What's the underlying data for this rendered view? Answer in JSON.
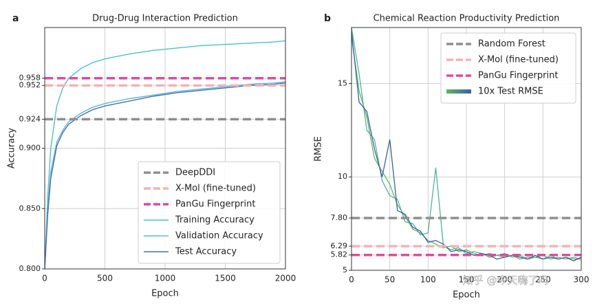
{
  "chart_data": [
    {
      "type": "line",
      "panel_label": "a",
      "title": "Drug-Drug Interaction Prediction",
      "xlabel": "Epoch",
      "ylabel": "Accuracy",
      "xlim": [
        0,
        2000
      ],
      "xticks": [
        0,
        500,
        1000,
        1500,
        2000
      ],
      "ylim": [
        0.8,
        1.0
      ],
      "yticks": [
        {
          "value": 0.8,
          "label": "0.800"
        },
        {
          "value": 0.85,
          "label": "0.850"
        },
        {
          "value": 0.9,
          "label": "0.900"
        },
        0.924,
        0.952,
        0.958
      ],
      "grid": true,
      "legend": "lower right",
      "hlines": [
        {
          "name": "DeepDDI",
          "color": "#8e8e8e",
          "value": 0.924
        },
        {
          "name": "X-Mol (fine-tuned)",
          "color": "#f0b4b4",
          "value": 0.952
        },
        {
          "name": "PanGu Fingerprint",
          "color": "#df4a9a",
          "value": 0.958
        }
      ],
      "x": [
        0,
        25,
        50,
        100,
        150,
        200,
        300,
        400,
        500,
        700,
        900,
        1100,
        1300,
        1500,
        1700,
        1900,
        2000
      ],
      "series": [
        {
          "name": "Training Accuracy",
          "color": "#4fc0c0",
          "values": [
            0.8,
            0.86,
            0.9,
            0.935,
            0.95,
            0.958,
            0.966,
            0.971,
            0.974,
            0.978,
            0.981,
            0.983,
            0.985,
            0.986,
            0.987,
            0.988,
            0.989
          ]
        },
        {
          "name": "Validation Accuracy",
          "color": "#5ab8dc",
          "values": [
            0.8,
            0.85,
            0.88,
            0.905,
            0.915,
            0.922,
            0.929,
            0.934,
            0.937,
            0.941,
            0.944,
            0.947,
            0.949,
            0.951,
            0.953,
            0.954,
            0.955
          ]
        },
        {
          "name": "Test Accuracy",
          "color": "#4a6fa8",
          "values": [
            0.8,
            0.845,
            0.875,
            0.902,
            0.913,
            0.92,
            0.927,
            0.932,
            0.935,
            0.939,
            0.943,
            0.946,
            0.948,
            0.95,
            0.952,
            0.953,
            0.954
          ]
        }
      ]
    },
    {
      "type": "line",
      "panel_label": "b",
      "title": "Chemical Reaction Productivity Prediction",
      "xlabel": "Epoch",
      "ylabel": "RMSE",
      "xlim": [
        0,
        300
      ],
      "xticks": [
        0,
        50,
        100,
        150,
        200,
        250,
        300
      ],
      "ylim": [
        5,
        18
      ],
      "yticks": [
        5,
        5.82,
        6.29,
        {
          "value": 7.8,
          "label": "7.80"
        },
        10,
        15
      ],
      "grid": true,
      "legend": "upper right",
      "hlines": [
        {
          "name": "Random Forest",
          "color": "#8e8e8e",
          "value": 7.8
        },
        {
          "name": "X-Mol (fine-tuned)",
          "color": "#f0b4b4",
          "value": 6.29
        },
        {
          "name": "PanGu Fingerprint",
          "color": "#df4a9a",
          "value": 5.82
        }
      ],
      "x": [
        0,
        10,
        20,
        30,
        40,
        50,
        60,
        70,
        80,
        90,
        100,
        110,
        120,
        130,
        140,
        150,
        160,
        170,
        180,
        190,
        200,
        210,
        220,
        230,
        240,
        250,
        260,
        270,
        280,
        290,
        300
      ],
      "series": [
        {
          "name": "10x Test RMSE",
          "colors": [
            "#5cb85c",
            "#4fb39a",
            "#3d5f9e"
          ],
          "runs": [
            [
              17.5,
              14.6,
              13.2,
              11.0,
              10.3,
              9.6,
              8.5,
              7.9,
              7.2,
              7.0,
              6.6,
              6.4,
              6.2,
              6.3,
              6.0,
              6.1,
              5.9,
              5.8,
              5.9,
              5.8,
              5.7,
              5.8,
              5.6,
              5.7,
              5.7,
              5.6,
              5.8,
              5.6,
              5.7,
              5.6,
              5.6
            ],
            [
              18.0,
              15.5,
              12.5,
              12.0,
              9.8,
              9.0,
              8.8,
              7.6,
              7.5,
              6.9,
              7.0,
              10.5,
              6.3,
              6.1,
              6.2,
              5.9,
              6.0,
              5.9,
              5.7,
              5.8,
              5.9,
              5.7,
              5.8,
              5.6,
              5.7,
              5.8,
              5.6,
              5.7,
              5.6,
              5.7,
              5.6
            ],
            [
              17.8,
              14.0,
              13.5,
              11.5,
              10.0,
              12.0,
              8.2,
              8.0,
              7.3,
              7.1,
              6.5,
              6.6,
              6.4,
              6.0,
              6.1,
              6.0,
              5.8,
              5.9,
              5.8,
              5.6,
              5.7,
              5.8,
              5.7,
              5.6,
              5.8,
              5.6,
              5.7,
              5.6,
              5.7,
              5.5,
              5.7
            ]
          ]
        }
      ]
    }
  ],
  "watermark": "知乎 @今天嗨了吗"
}
